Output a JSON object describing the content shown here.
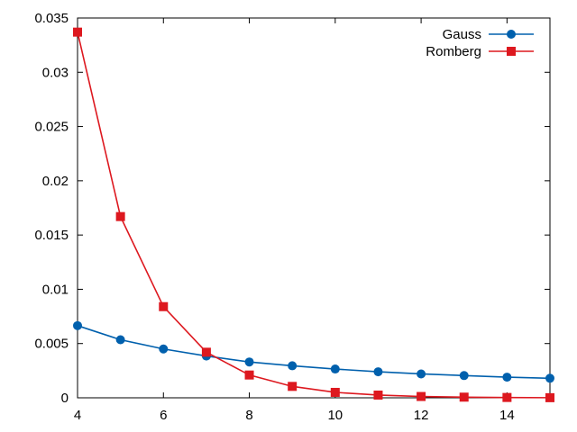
{
  "chart_data": {
    "type": "line",
    "title": "",
    "xlabel": "",
    "ylabel": "",
    "xlim": [
      4,
      15
    ],
    "ylim": [
      0,
      0.035
    ],
    "xticks": [
      4,
      6,
      8,
      10,
      12,
      14
    ],
    "yticks": [
      0,
      0.005,
      0.01,
      0.015,
      0.02,
      0.025,
      0.03,
      0.035
    ],
    "xtick_labels": [
      "4",
      "6",
      "8",
      "10",
      "12",
      "14"
    ],
    "ytick_labels": [
      "0",
      "0.005",
      "0.01",
      "0.015",
      "0.02",
      "0.025",
      "0.03",
      "0.035"
    ],
    "grid": false,
    "legend_position": "top-right",
    "x": [
      4,
      5,
      6,
      7,
      8,
      9,
      10,
      11,
      12,
      13,
      14,
      15
    ],
    "series": [
      {
        "name": "Gauss",
        "color": "#0060ad",
        "marker": "circle",
        "values": [
          0.00665,
          0.00535,
          0.0045,
          0.00385,
          0.0033,
          0.00295,
          0.00265,
          0.0024,
          0.0022,
          0.00205,
          0.0019,
          0.0018
        ]
      },
      {
        "name": "Romberg",
        "color": "#dd181f",
        "marker": "square",
        "values": [
          0.0337,
          0.0167,
          0.0084,
          0.0042,
          0.0021,
          0.00105,
          0.0005,
          0.00025,
          0.00012,
          6e-05,
          3e-05,
          1e-05
        ]
      }
    ]
  }
}
